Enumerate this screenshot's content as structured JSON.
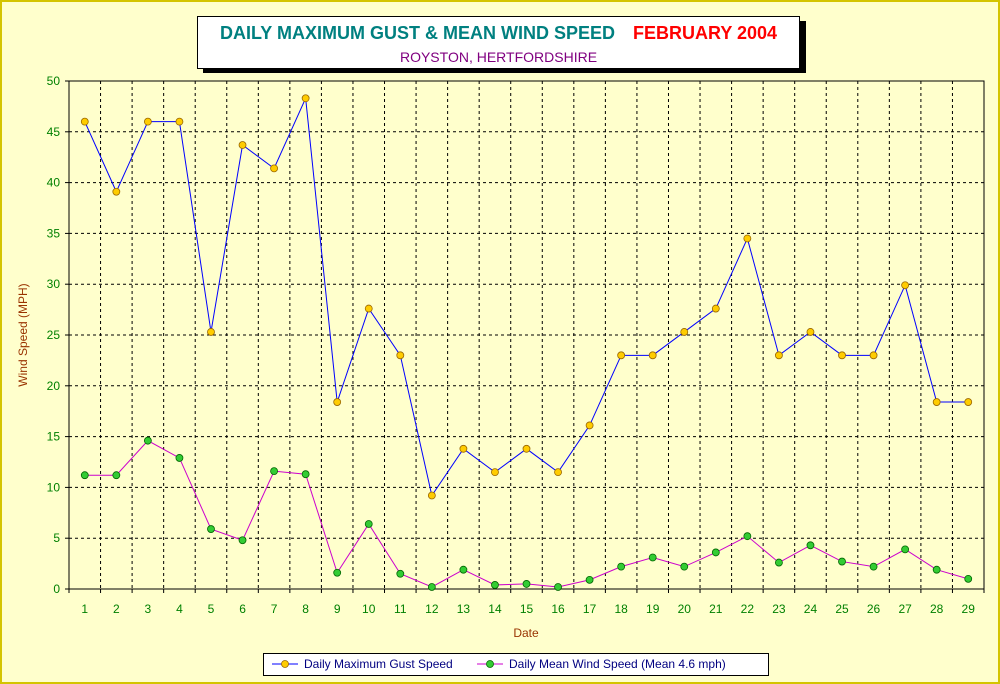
{
  "title": {
    "main": "DAILY MAXIMUM GUST & MEAN WIND SPEED",
    "month": "FEBRUARY 2004",
    "subtitle": "ROYSTON, HERTFORDSHIRE"
  },
  "colors": {
    "background": "#ffffcc",
    "frame": "#d4c400",
    "gust_line": "#0000ff",
    "gust_marker": "#ffcc00",
    "mean_line": "#cc00cc",
    "mean_marker": "#33cc33",
    "axis_text": "#008000",
    "axis_label": "#993300"
  },
  "chart_data": {
    "type": "line",
    "title": "DAILY MAXIMUM GUST & MEAN WIND SPEED FEBRUARY 2004",
    "subtitle": "ROYSTON, HERTFORDSHIRE",
    "xlabel": "Date",
    "ylabel": "Wind Speed (MPH)",
    "ylim": [
      0,
      50
    ],
    "yticks": [
      0,
      5,
      10,
      15,
      20,
      25,
      30,
      35,
      40,
      45,
      50
    ],
    "grid": true,
    "legend_position": "bottom",
    "categories": [
      "1",
      "2",
      "3",
      "4",
      "5",
      "6",
      "7",
      "8",
      "9",
      "10",
      "11",
      "12",
      "13",
      "14",
      "15",
      "16",
      "17",
      "18",
      "19",
      "20",
      "21",
      "22",
      "23",
      "24",
      "25",
      "26",
      "27",
      "28",
      "29"
    ],
    "series": [
      {
        "name": "Daily Maximum Gust Speed",
        "values": [
          46.0,
          39.1,
          46.0,
          46.0,
          25.3,
          43.7,
          41.4,
          48.3,
          18.4,
          27.6,
          23.0,
          9.2,
          13.8,
          11.5,
          13.8,
          11.5,
          16.1,
          23.0,
          23.0,
          25.3,
          27.6,
          34.5,
          23.0,
          25.3,
          23.0,
          23.0,
          29.9,
          18.4,
          18.4
        ]
      },
      {
        "name": "Daily Mean Wind Speed (Mean 4.6 mph)",
        "values": [
          11.2,
          11.2,
          14.6,
          12.9,
          5.9,
          4.8,
          11.6,
          11.3,
          1.6,
          6.4,
          1.5,
          0.2,
          1.9,
          0.4,
          0.5,
          0.2,
          0.9,
          2.2,
          3.1,
          2.2,
          3.6,
          5.2,
          2.6,
          4.3,
          2.7,
          2.2,
          3.9,
          1.9,
          1.0
        ]
      }
    ]
  }
}
